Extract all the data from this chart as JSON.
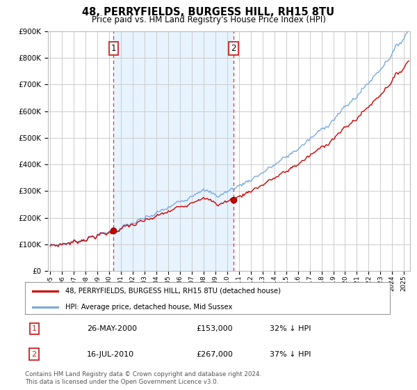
{
  "title": "48, PERRYFIELDS, BURGESS HILL, RH15 8TU",
  "subtitle": "Price paid vs. HM Land Registry's House Price Index (HPI)",
  "title_fontsize": 11,
  "subtitle_fontsize": 9,
  "background_color": "#ffffff",
  "plot_bg_color": "#ffffff",
  "grid_color": "#cccccc",
  "shade_color": "#ddeeff",
  "sale1": {
    "year": 2000.37,
    "price": 153000,
    "label": "1",
    "date": "26-MAY-2000",
    "pct": "32% ↓ HPI"
  },
  "sale2": {
    "year": 2010.53,
    "price": 267000,
    "label": "2",
    "date": "16-JUL-2010",
    "pct": "37% ↓ HPI"
  },
  "red_line_color": "#cc0000",
  "blue_line_color": "#7aaadd",
  "ylim": [
    0,
    900000
  ],
  "xlim_start": 1994.8,
  "xlim_end": 2025.5,
  "legend_label_red": "48, PERRYFIELDS, BURGESS HILL, RH15 8TU (detached house)",
  "legend_label_blue": "HPI: Average price, detached house, Mid Sussex",
  "footer": "Contains HM Land Registry data © Crown copyright and database right 2024.\nThis data is licensed under the Open Government Licence v3.0.",
  "table_rows": [
    [
      "1",
      "26-MAY-2000",
      "£153,000",
      "32% ↓ HPI"
    ],
    [
      "2",
      "16-JUL-2010",
      "£267,000",
      "37% ↓ HPI"
    ]
  ]
}
